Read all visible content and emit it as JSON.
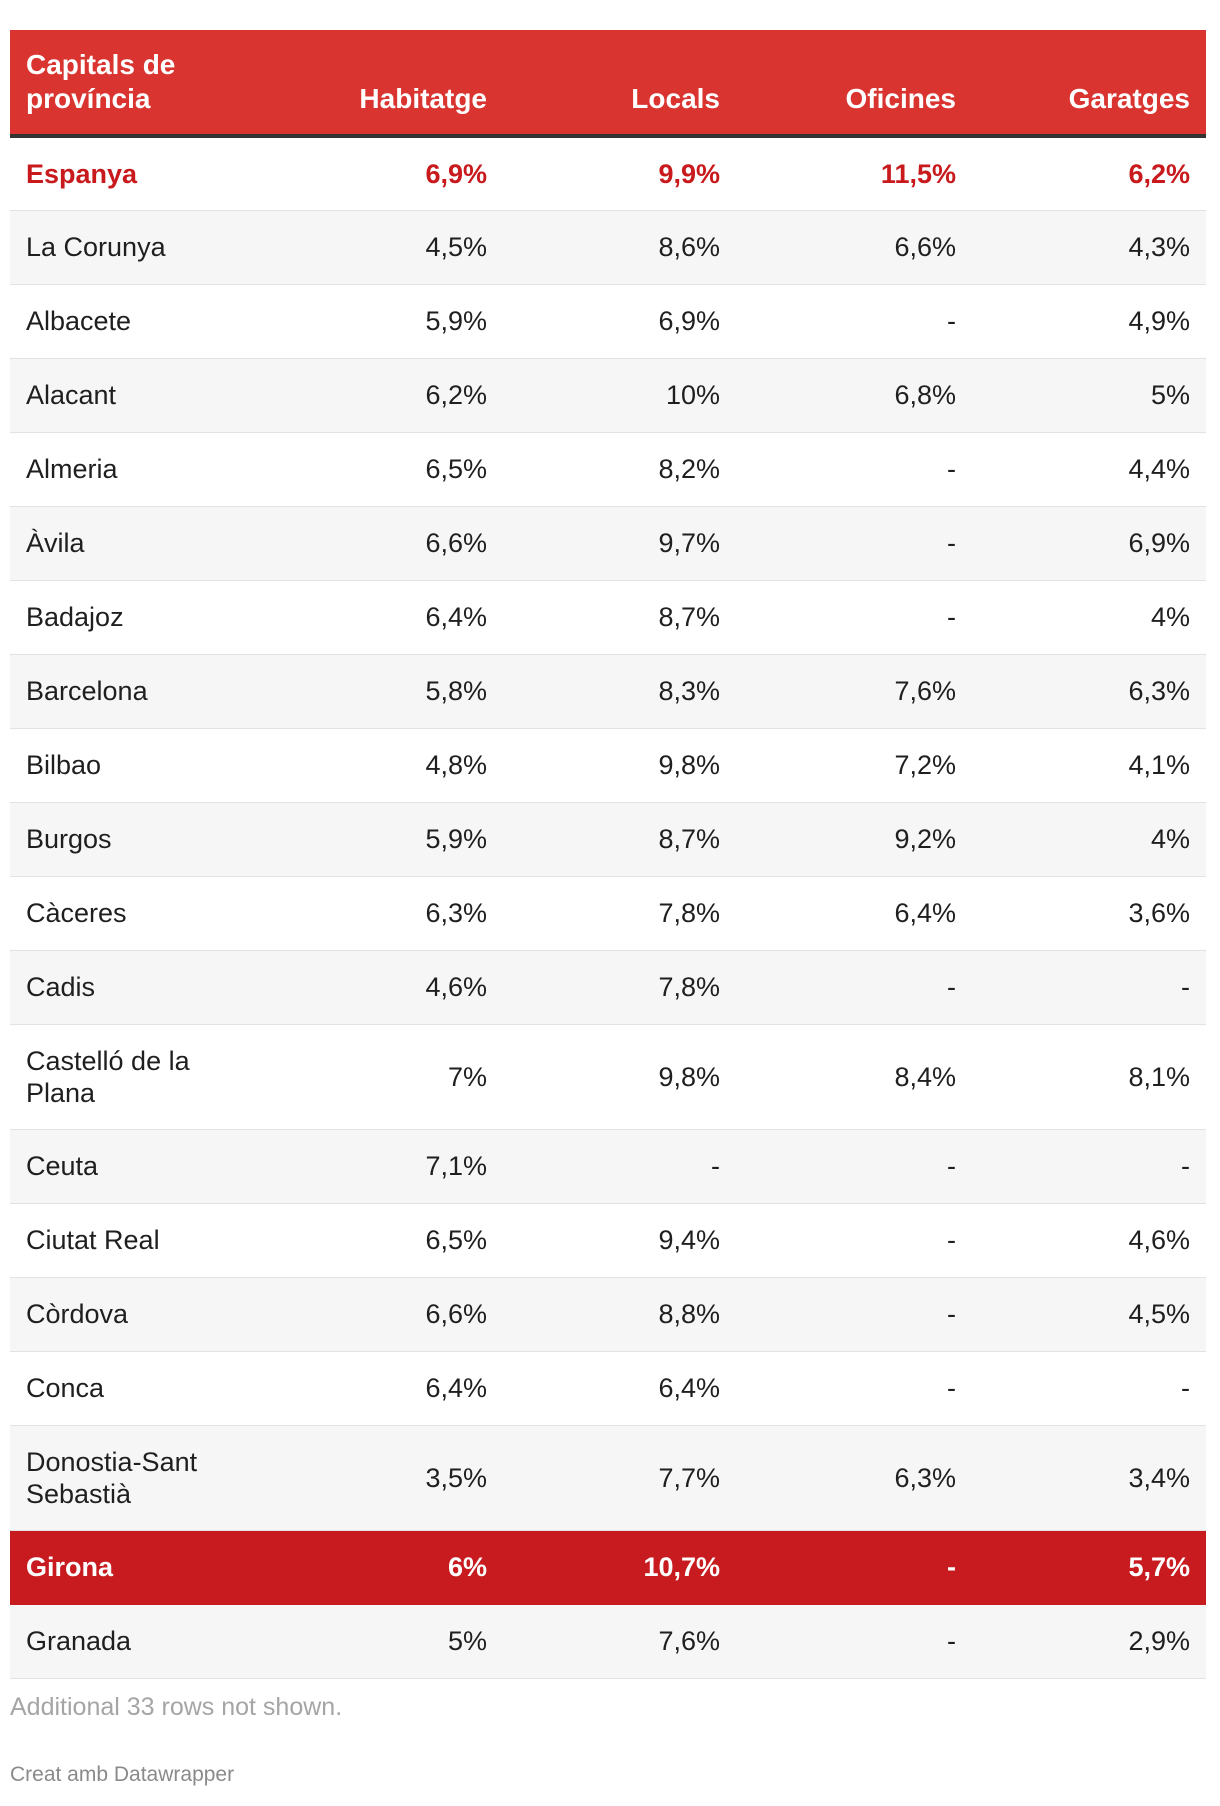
{
  "chart_data": {
    "type": "table",
    "columns": [
      "Capitals de província",
      "Habitatge",
      "Locals",
      "Oficines",
      "Garatges"
    ],
    "rows": [
      {
        "name": "Espanya",
        "values": [
          "6,9%",
          "9,9%",
          "11,5%",
          "6,2%"
        ],
        "highlight": "text"
      },
      {
        "name": "La Corunya",
        "values": [
          "4,5%",
          "8,6%",
          "6,6%",
          "4,3%"
        ]
      },
      {
        "name": "Albacete",
        "values": [
          "5,9%",
          "6,9%",
          "-",
          "4,9%"
        ]
      },
      {
        "name": "Alacant",
        "values": [
          "6,2%",
          "10%",
          "6,8%",
          "5%"
        ]
      },
      {
        "name": "Almeria",
        "values": [
          "6,5%",
          "8,2%",
          "-",
          "4,4%"
        ]
      },
      {
        "name": "Àvila",
        "values": [
          "6,6%",
          "9,7%",
          "-",
          "6,9%"
        ]
      },
      {
        "name": "Badajoz",
        "values": [
          "6,4%",
          "8,7%",
          "-",
          "4%"
        ]
      },
      {
        "name": "Barcelona",
        "values": [
          "5,8%",
          "8,3%",
          "7,6%",
          "6,3%"
        ]
      },
      {
        "name": "Bilbao",
        "values": [
          "4,8%",
          "9,8%",
          "7,2%",
          "4,1%"
        ]
      },
      {
        "name": "Burgos",
        "values": [
          "5,9%",
          "8,7%",
          "9,2%",
          "4%"
        ]
      },
      {
        "name": "Càceres",
        "values": [
          "6,3%",
          "7,8%",
          "6,4%",
          "3,6%"
        ]
      },
      {
        "name": "Cadis",
        "values": [
          "4,6%",
          "7,8%",
          "-",
          "-"
        ]
      },
      {
        "name": "Castelló de la Plana",
        "values": [
          "7%",
          "9,8%",
          "8,4%",
          "8,1%"
        ]
      },
      {
        "name": "Ceuta",
        "values": [
          "7,1%",
          "-",
          "-",
          "-"
        ]
      },
      {
        "name": "Ciutat Real",
        "values": [
          "6,5%",
          "9,4%",
          "-",
          "4,6%"
        ]
      },
      {
        "name": "Còrdova",
        "values": [
          "6,6%",
          "8,8%",
          "-",
          "4,5%"
        ]
      },
      {
        "name": "Conca",
        "values": [
          "6,4%",
          "6,4%",
          "-",
          "-"
        ]
      },
      {
        "name": "Donostia-Sant Sebastià",
        "values": [
          "3,5%",
          "7,7%",
          "6,3%",
          "3,4%"
        ]
      },
      {
        "name": "Girona",
        "values": [
          "6%",
          "10,7%",
          "-",
          "5,7%"
        ],
        "highlight": "row"
      },
      {
        "name": "Granada",
        "values": [
          "5%",
          "7,6%",
          "-",
          "2,9%"
        ]
      }
    ]
  },
  "footer": {
    "note": "Additional 33 rows not shown.",
    "credit": "Creat amb Datawrapper"
  },
  "colors": {
    "header_bg": "#d9342f",
    "highlight_text": "#c8191c",
    "highlight_row_bg": "#c81b1f",
    "stripe": "#f6f6f6"
  }
}
